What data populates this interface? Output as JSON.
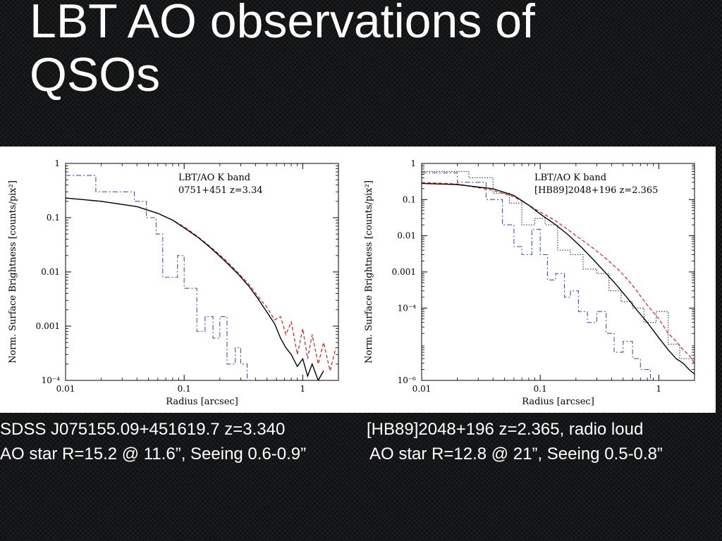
{
  "slide": {
    "title": "LBT AO observations of QSOs",
    "captions": {
      "left_line1": "SDSS J075155.09+451619.7 z=3.340",
      "left_line2": "AO star R=15.2 @ 11.6”, Seeing 0.6-0.9”",
      "right_line1": "[HB89]2048+196 z=2.365, radio loud",
      "right_line2": "AO star R=12.8 @ 21”, Seeing 0.5-0.8”"
    }
  },
  "colors": {
    "background": "#151617",
    "qso_profile": "#000000",
    "psf_model": "#cc2222",
    "ao_star": "#4455aa",
    "dotted_profile": "#333333"
  },
  "chart_data": [
    {
      "type": "line",
      "xscale": "log",
      "yscale": "log",
      "xlim": [
        0.01,
        2
      ],
      "ylim": [
        0.0001,
        1
      ],
      "xlabel": "Radius [arcsec]",
      "ylabel": "Norm. Surface Brightness [counts/pix²]",
      "xticks": [
        {
          "v": 0.01,
          "label": "0.01"
        },
        {
          "v": 0.1,
          "label": "0.1"
        },
        {
          "v": 1,
          "label": "1"
        }
      ],
      "yticks": [
        {
          "v": 1,
          "label": "1"
        },
        {
          "v": 0.1,
          "label": "0.1"
        },
        {
          "v": 0.01,
          "label": "0.01"
        },
        {
          "v": 0.001,
          "label": "0.001"
        },
        {
          "v": 0.0001,
          "label": "10⁻⁴"
        }
      ],
      "annotations": [
        "LBT/AO K band",
        "0751+451 z=3.34"
      ],
      "series": [
        {
          "key": "ao_star",
          "style": "dashdot",
          "x": [
            0.01,
            0.018,
            0.018,
            0.038,
            0.038,
            0.048,
            0.048,
            0.058,
            0.058,
            0.066,
            0.066,
            0.075,
            0.075,
            0.088,
            0.088,
            0.1,
            0.1,
            0.113,
            0.113,
            0.128,
            0.128,
            0.15,
            0.15,
            0.175,
            0.175,
            0.2,
            0.2,
            0.23,
            0.23,
            0.27,
            0.27,
            0.3,
            0.3,
            0.34,
            0.34,
            0.4
          ],
          "y": [
            0.6,
            0.6,
            0.3,
            0.3,
            0.2,
            0.2,
            0.1,
            0.1,
            0.05,
            0.05,
            0.008,
            0.008,
            0.008,
            0.008,
            0.02,
            0.02,
            0.005,
            0.005,
            0.005,
            0.005,
            0.0008,
            0.0008,
            0.0015,
            0.0015,
            0.0006,
            0.0006,
            0.0015,
            0.0015,
            0.0002,
            0.0002,
            0.0004,
            0.0004,
            0.0002,
            0.0002,
            0.0001,
            0.0001
          ]
        },
        {
          "key": "psf_model",
          "style": "dashed",
          "x": [
            0.01,
            0.02,
            0.04,
            0.06,
            0.08,
            0.1,
            0.13,
            0.17,
            0.22,
            0.28,
            0.35,
            0.42,
            0.5,
            0.58,
            0.65,
            0.72,
            0.8,
            0.9,
            1.0,
            1.1,
            1.2,
            1.35,
            1.5,
            1.7,
            1.9
          ],
          "y": [
            0.23,
            0.2,
            0.16,
            0.12,
            0.09,
            0.068,
            0.045,
            0.028,
            0.017,
            0.01,
            0.006,
            0.0035,
            0.0022,
            0.0013,
            0.0015,
            0.0007,
            0.0012,
            0.0003,
            0.0009,
            0.00025,
            0.0007,
            0.0002,
            0.0005,
            0.00015,
            0.0004
          ]
        },
        {
          "key": "qso_profile",
          "style": "solid",
          "x": [
            0.01,
            0.02,
            0.04,
            0.06,
            0.08,
            0.1,
            0.13,
            0.17,
            0.22,
            0.28,
            0.35,
            0.42,
            0.5,
            0.58,
            0.65,
            0.72,
            0.8,
            0.9,
            1.0,
            1.1,
            1.2,
            1.35,
            1.5
          ],
          "y": [
            0.23,
            0.2,
            0.16,
            0.12,
            0.09,
            0.065,
            0.044,
            0.027,
            0.016,
            0.0095,
            0.0055,
            0.0032,
            0.0018,
            0.0011,
            0.0006,
            0.0004,
            0.0003,
            0.00018,
            0.00025,
            0.00012,
            0.0002,
            0.0001,
            0.00015
          ]
        }
      ]
    },
    {
      "type": "line",
      "xscale": "log",
      "yscale": "log",
      "xlim": [
        0.01,
        2
      ],
      "ylim": [
        1e-06,
        1
      ],
      "xlabel": "Radius [arcsec]",
      "ylabel": "Norm. Surface Brightness [counts/pix²]",
      "xticks": [
        {
          "v": 0.01,
          "label": "0.01"
        },
        {
          "v": 0.1,
          "label": "0.1"
        },
        {
          "v": 1,
          "label": "1"
        }
      ],
      "yticks": [
        {
          "v": 1,
          "label": "1"
        },
        {
          "v": 0.1,
          "label": "0.1"
        },
        {
          "v": 0.01,
          "label": "0.01"
        },
        {
          "v": 0.001,
          "label": "0.001"
        },
        {
          "v": 0.0001,
          "label": "10⁻⁴"
        },
        {
          "v": 1e-06,
          "label": "10⁻⁶"
        }
      ],
      "annotations": [
        "LBT/AO K band",
        "[HB89]2048+196 z=2.365"
      ],
      "series": [
        {
          "key": "ao_star",
          "style": "dashdot",
          "x": [
            0.01,
            0.02,
            0.02,
            0.035,
            0.035,
            0.048,
            0.048,
            0.06,
            0.06,
            0.07,
            0.07,
            0.085,
            0.085,
            0.1,
            0.1,
            0.115,
            0.115,
            0.135,
            0.135,
            0.16,
            0.16,
            0.18,
            0.18,
            0.21,
            0.21,
            0.25,
            0.25,
            0.3,
            0.3,
            0.36,
            0.36,
            0.42,
            0.42,
            0.5,
            0.5,
            0.6,
            0.6,
            0.7,
            0.7,
            0.85,
            0.85,
            1.0
          ],
          "y": [
            0.55,
            0.55,
            0.3,
            0.3,
            0.1,
            0.1,
            0.02,
            0.02,
            0.005,
            0.005,
            0.003,
            0.003,
            0.015,
            0.015,
            0.003,
            0.003,
            0.0006,
            0.0006,
            0.0009,
            0.0009,
            0.0002,
            0.0002,
            0.0003,
            0.0003,
            8e-05,
            8e-05,
            4e-05,
            4e-05,
            8e-05,
            8e-05,
            2e-05,
            2e-05,
            6e-06,
            6e-06,
            1.2e-05,
            1.2e-05,
            4e-06,
            4e-06,
            2e-06,
            2e-06,
            1e-06,
            1e-06
          ]
        },
        {
          "key": "dotted_profile",
          "style": "dotted",
          "x": [
            0.01,
            0.025,
            0.025,
            0.04,
            0.04,
            0.055,
            0.055,
            0.07,
            0.07,
            0.09,
            0.09,
            0.11,
            0.11,
            0.14,
            0.14,
            0.18,
            0.18,
            0.23,
            0.23,
            0.3,
            0.3,
            0.38,
            0.38,
            0.48,
            0.48,
            0.6,
            0.6,
            0.75,
            0.75,
            0.95,
            0.95,
            1.2,
            1.2,
            1.5,
            1.5,
            1.9
          ],
          "y": [
            0.6,
            0.6,
            0.4,
            0.4,
            0.15,
            0.15,
            0.08,
            0.08,
            0.02,
            0.02,
            0.03,
            0.03,
            0.02,
            0.02,
            0.004,
            0.004,
            0.003,
            0.003,
            0.0012,
            0.0012,
            0.0009,
            0.0009,
            0.0003,
            0.0003,
            0.00015,
            0.00015,
            0.0001,
            0.0001,
            4e-05,
            4e-05,
            8e-05,
            8e-05,
            1e-05,
            1e-05,
            4e-06,
            4e-06
          ]
        },
        {
          "key": "psf_model",
          "style": "dashed",
          "x": [
            0.01,
            0.02,
            0.04,
            0.06,
            0.08,
            0.1,
            0.13,
            0.17,
            0.22,
            0.28,
            0.35,
            0.45,
            0.55,
            0.65,
            0.8,
            1.0,
            1.2,
            1.4,
            1.6,
            1.8,
            2.0
          ],
          "y": [
            0.3,
            0.27,
            0.18,
            0.12,
            0.07,
            0.045,
            0.028,
            0.015,
            0.008,
            0.0045,
            0.0025,
            0.0012,
            0.0006,
            0.0003,
            0.00012,
            5e-05,
            2e-05,
            1.2e-05,
            7e-06,
            5e-06,
            3e-06
          ]
        },
        {
          "key": "qso_profile",
          "style": "solid",
          "x": [
            0.01,
            0.02,
            0.04,
            0.06,
            0.08,
            0.1,
            0.13,
            0.17,
            0.22,
            0.28,
            0.35,
            0.45,
            0.55,
            0.65,
            0.8,
            1.0,
            1.2,
            1.4,
            1.6,
            1.8,
            2.0
          ],
          "y": [
            0.28,
            0.26,
            0.2,
            0.13,
            0.07,
            0.04,
            0.022,
            0.011,
            0.005,
            0.0022,
            0.001,
            0.0004,
            0.00018,
            9e-05,
            4e-05,
            1.5e-05,
            7e-06,
            4e-06,
            3e-06,
            2e-06,
            1.5e-06
          ]
        }
      ]
    }
  ]
}
